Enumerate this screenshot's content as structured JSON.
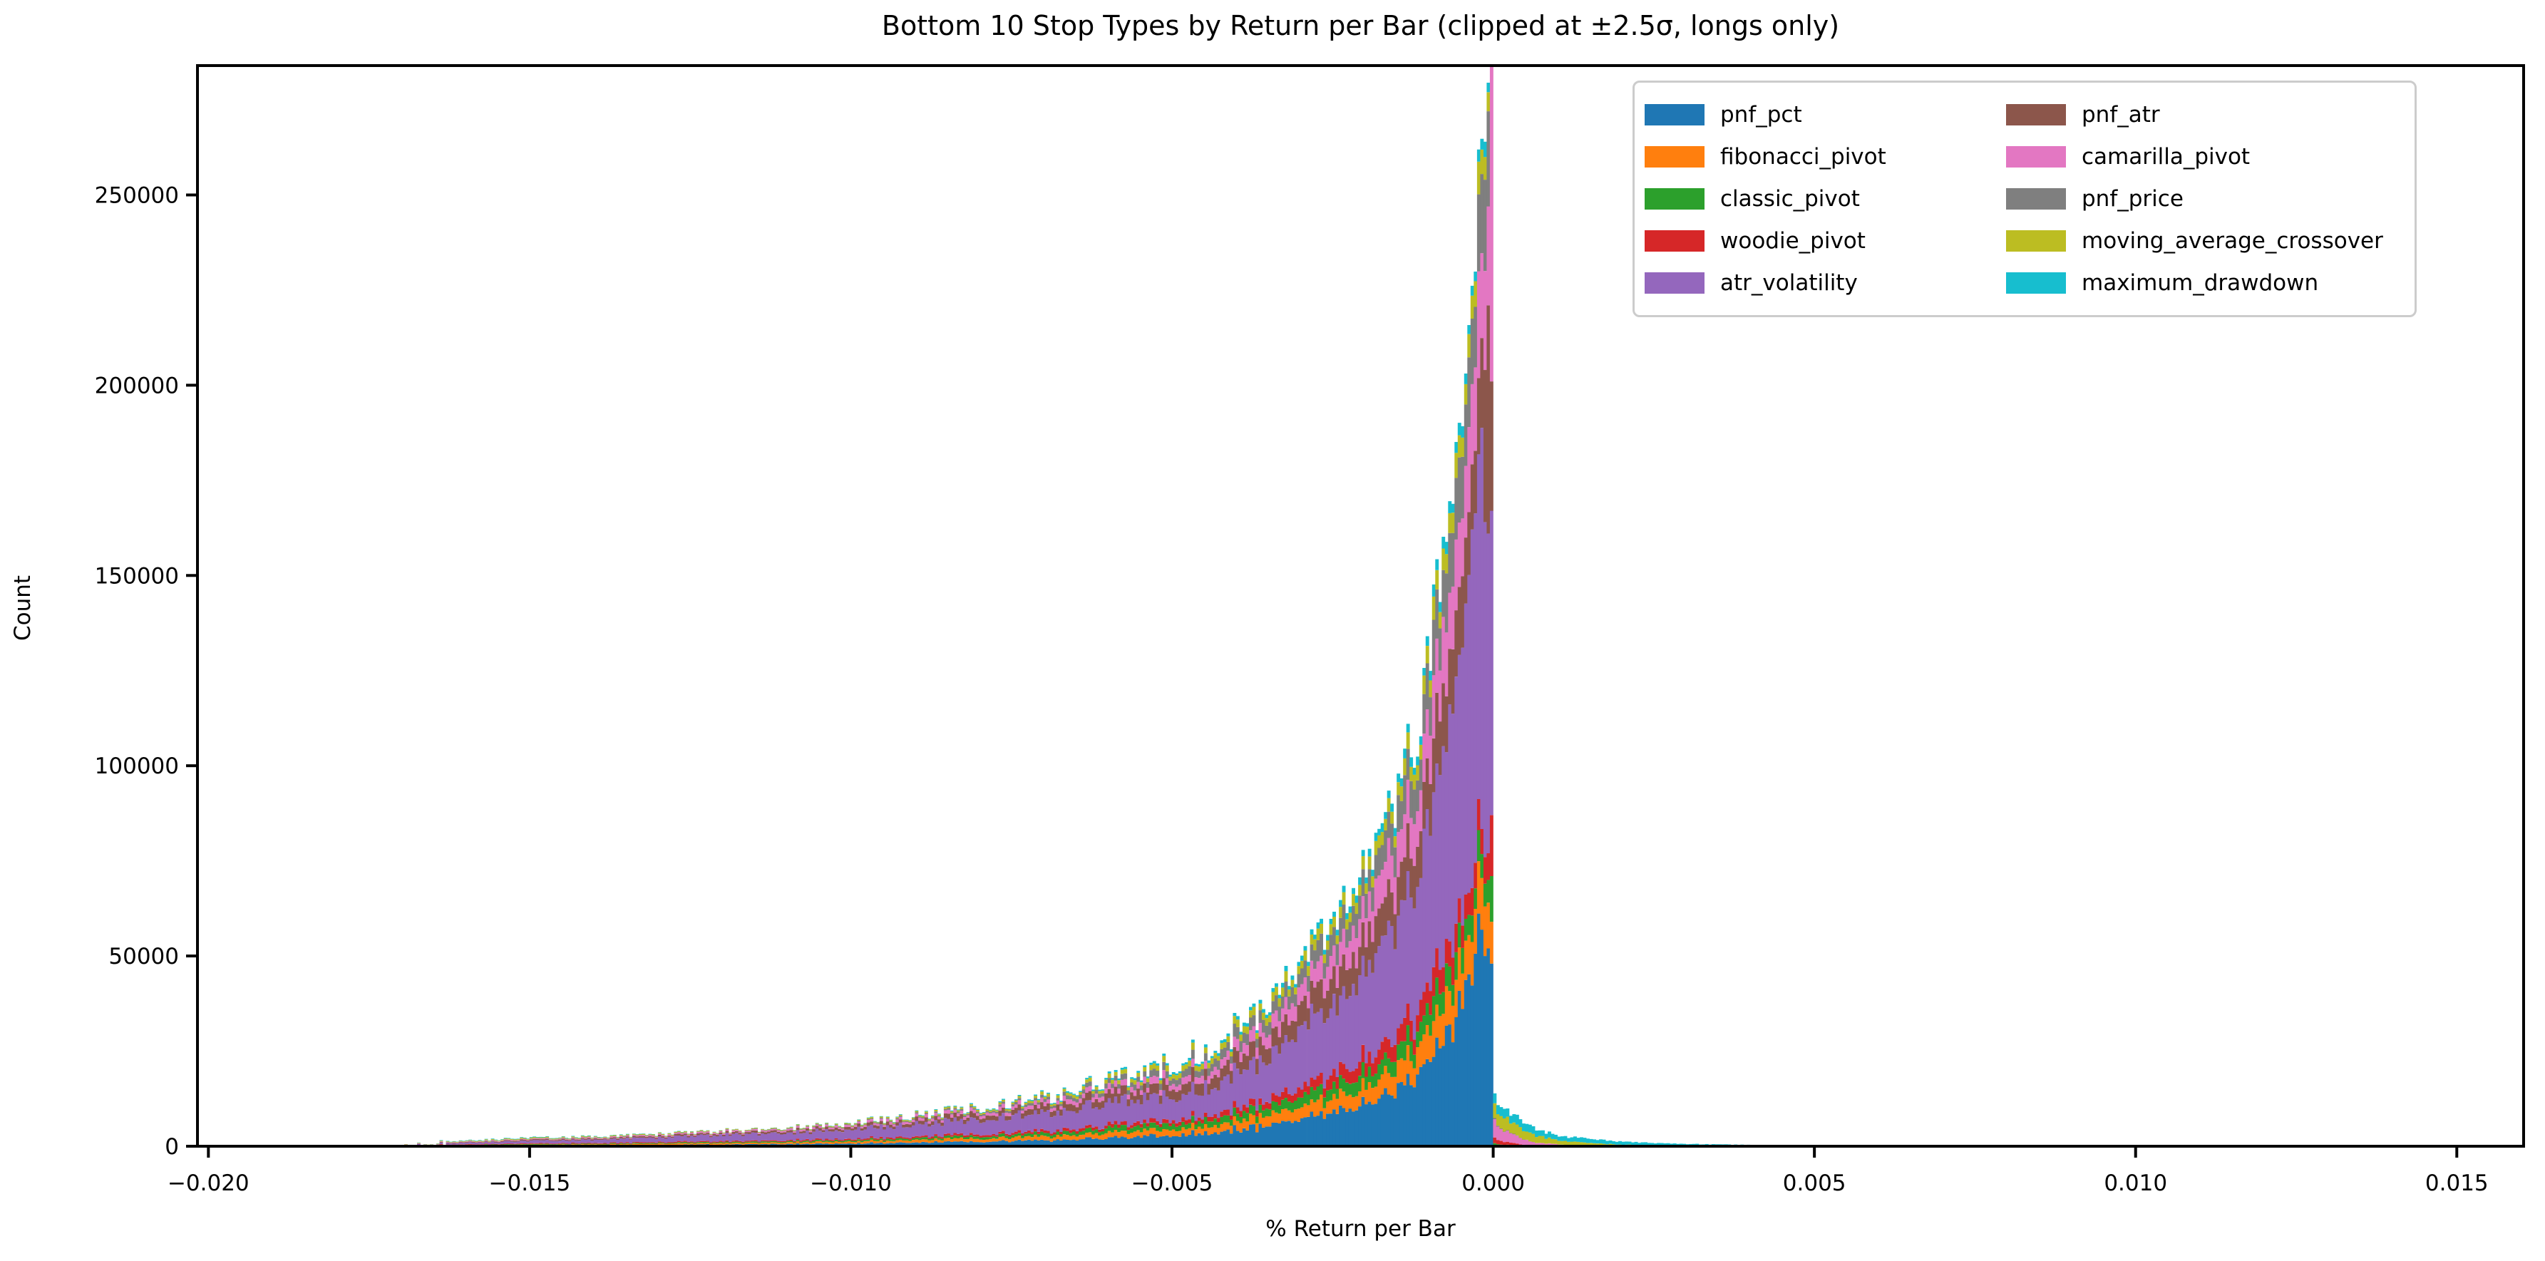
{
  "figure": {
    "title": "Bottom 10 Stop Types by Return per Bar (clipped at ±2.5σ, longs only)",
    "xlabel": "% Return per Bar",
    "ylabel": "Count"
  },
  "chart_data": {
    "type": "bar",
    "subtype": "stacked-histogram",
    "title": "Bottom 10 Stop Types by Return per Bar (clipped at ±2.5σ, longs only)",
    "xlabel": "% Return per Bar",
    "ylabel": "Count",
    "xlim": [
      -0.02017,
      0.01604
    ],
    "ylim": [
      0,
      284000
    ],
    "grid": false,
    "legend_position": "upper right",
    "bin_width": 5e-05,
    "xticks": [
      {
        "v": -0.02,
        "label": "−0.020"
      },
      {
        "v": -0.015,
        "label": "−0.015"
      },
      {
        "v": -0.01,
        "label": "−0.010"
      },
      {
        "v": -0.005,
        "label": "−0.005"
      },
      {
        "v": 0.0,
        "label": "0.000"
      },
      {
        "v": 0.005,
        "label": "0.005"
      },
      {
        "v": 0.01,
        "label": "0.010"
      },
      {
        "v": 0.015,
        "label": "0.015"
      }
    ],
    "yticks": [
      {
        "v": 0,
        "label": "0"
      },
      {
        "v": 50000,
        "label": "50000"
      },
      {
        "v": 100000,
        "label": "100000"
      },
      {
        "v": 150000,
        "label": "150000"
      },
      {
        "v": 200000,
        "label": "200000"
      },
      {
        "v": 250000,
        "label": "250000"
      }
    ],
    "series": [
      {
        "name": "pnf_pct",
        "color": "#1f77b4"
      },
      {
        "name": "fibonacci_pivot",
        "color": "#ff7f0e"
      },
      {
        "name": "classic_pivot",
        "color": "#2ca02c"
      },
      {
        "name": "woodie_pivot",
        "color": "#d62728"
      },
      {
        "name": "atr_volatility",
        "color": "#9467bd"
      },
      {
        "name": "pnf_atr",
        "color": "#8c564b"
      },
      {
        "name": "camarilla_pivot",
        "color": "#e377c2"
      },
      {
        "name": "pnf_price",
        "color": "#7f7f7f"
      },
      {
        "name": "moving_average_crossover",
        "color": "#bcbd22"
      },
      {
        "name": "maximum_drawdown",
        "color": "#17becf"
      }
    ],
    "envelope_neg": [
      [
        -0.01795,
        250
      ],
      [
        -0.0178,
        420
      ],
      [
        -0.0172,
        380
      ],
      [
        -0.0168,
        650
      ],
      [
        -0.0165,
        1100
      ],
      [
        -0.016,
        1500
      ],
      [
        -0.015,
        2200
      ],
      [
        -0.014,
        2600
      ],
      [
        -0.013,
        3200
      ],
      [
        -0.012,
        4000
      ],
      [
        -0.011,
        4800
      ],
      [
        -0.01,
        6000
      ],
      [
        -0.009,
        8200
      ],
      [
        -0.008,
        10200
      ],
      [
        -0.007,
        12800
      ],
      [
        -0.006,
        17000
      ],
      [
        -0.005,
        22500
      ],
      [
        -0.0045,
        26000
      ],
      [
        -0.004,
        31000
      ],
      [
        -0.0035,
        38000
      ],
      [
        -0.003,
        48000
      ],
      [
        -0.0025,
        60000
      ],
      [
        -0.002,
        72000
      ],
      [
        -0.0016,
        88000
      ],
      [
        -0.0012,
        110000
      ],
      [
        -0.001,
        128000
      ],
      [
        -0.0008,
        150000
      ],
      [
        -0.0006,
        175000
      ],
      [
        -0.0005,
        190000
      ],
      [
        -0.0004,
        205000
      ],
      [
        -0.0003,
        228000
      ],
      [
        -0.0002,
        258000
      ],
      [
        -0.0001,
        280000
      ],
      [
        -3e-05,
        290000
      ]
    ],
    "envelope_pos": [
      [
        3e-05,
        13700
      ],
      [
        0.0002,
        10500
      ],
      [
        0.0003,
        8300
      ],
      [
        0.0005,
        5800
      ],
      [
        0.0008,
        3700
      ],
      [
        0.0012,
        2400
      ],
      [
        0.0016,
        1700
      ],
      [
        0.002,
        1150
      ],
      [
        0.0025,
        820
      ],
      [
        0.003,
        620
      ],
      [
        0.0035,
        460
      ],
      [
        0.004,
        350
      ],
      [
        0.0045,
        210
      ],
      [
        0.005,
        130
      ],
      [
        0.0055,
        70
      ],
      [
        0.006,
        40
      ],
      [
        0.0065,
        15
      ],
      [
        0.007,
        0
      ]
    ],
    "shares_neg": [
      {
        "x": -0.018,
        "f": [
          0.3,
          0.2,
          0.1,
          0.1,
          0.15,
          0.05,
          0.05,
          0.0,
          0.03,
          0.02
        ]
      },
      {
        "x": -0.0165,
        "f": [
          0.08,
          0.12,
          0.08,
          0.09,
          0.28,
          0.12,
          0.09,
          0.02,
          0.14,
          0.08
        ]
      },
      {
        "x": -0.012,
        "f": [
          0.12,
          0.09,
          0.06,
          0.06,
          0.41,
          0.11,
          0.08,
          0.02,
          0.04,
          0.01
        ]
      },
      {
        "x": -0.008,
        "f": [
          0.12,
          0.08,
          0.06,
          0.05,
          0.39,
          0.12,
          0.08,
          0.04,
          0.04,
          0.02
        ]
      },
      {
        "x": -0.005,
        "f": [
          0.13,
          0.079,
          0.068,
          0.047,
          0.3,
          0.128,
          0.077,
          0.085,
          0.06,
          0.026
        ]
      },
      {
        "x": -0.002,
        "f": [
          0.152,
          0.06,
          0.049,
          0.052,
          0.314,
          0.117,
          0.105,
          0.086,
          0.04,
          0.025
        ]
      },
      {
        "x": -0.0008,
        "f": [
          0.17,
          0.058,
          0.04,
          0.045,
          0.335,
          0.1,
          0.1,
          0.083,
          0.035,
          0.018
        ]
      },
      {
        "x": -0.0003,
        "f": [
          0.21,
          0.056,
          0.027,
          0.028,
          0.375,
          0.083,
          0.092,
          0.078,
          0.028,
          0.012
        ]
      }
    ],
    "shares_pos": [
      {
        "x": 3e-05,
        "f": [
          0,
          0,
          0.055,
          0.1,
          0,
          0,
          0.34,
          0.02,
          0.28,
          0.205
        ]
      },
      {
        "x": 0.0006,
        "f": [
          0,
          0,
          0.01,
          0.03,
          0,
          0,
          0.18,
          0.01,
          0.42,
          0.35
        ]
      },
      {
        "x": 0.0015,
        "f": [
          0,
          0,
          0.0,
          0.01,
          0,
          0,
          0.07,
          0.0,
          0.38,
          0.54
        ]
      },
      {
        "x": 0.003,
        "f": [
          0,
          0,
          0,
          0,
          0,
          0,
          0.02,
          0,
          0.14,
          0.84
        ]
      },
      {
        "x": 0.006,
        "f": [
          0,
          0,
          0,
          0,
          0,
          0,
          0.0,
          0,
          0.05,
          0.95
        ]
      }
    ],
    "bin_overrides": [
      {
        "x": -0.000125,
        "counts": [
          50000,
          13000,
          6000,
          7000,
          88000,
          40000,
          26000,
          24000,
          6000,
          4000
        ]
      },
      {
        "x": -7.5e-05,
        "counts": [
          52000,
          12000,
          6000,
          7000,
          84000,
          60000,
          26000,
          25000,
          5000,
          2500
        ]
      },
      {
        "x": -2.5e-05,
        "counts": [
          48000,
          11000,
          12000,
          16000,
          80000,
          34000,
          95000,
          2000,
          1500,
          800
        ]
      },
      {
        "x": 2.5e-05,
        "counts": [
          0,
          0,
          800,
          1500,
          0,
          0,
          4800,
          300,
          3900,
          2600
        ]
      }
    ]
  }
}
